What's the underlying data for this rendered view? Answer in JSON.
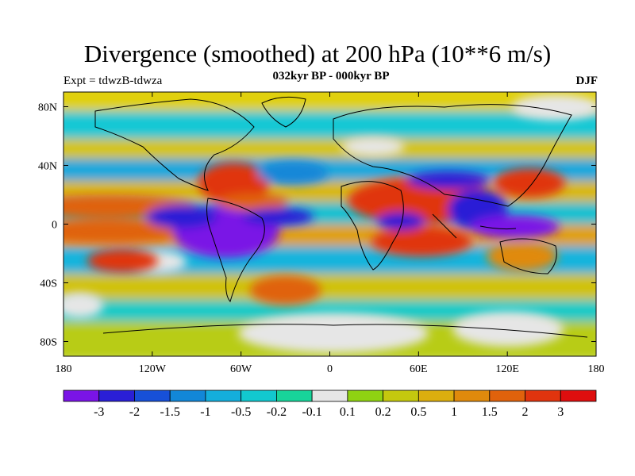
{
  "title": "Divergence (smoothed) at 200 hPa (10**6 m/s)",
  "subtitle": "032kyr BP - 000kyr BP",
  "left_label": "Expt = tdwzB-tdwza",
  "right_label": "DJF",
  "chart_data": {
    "type": "heatmap",
    "title": "Divergence (smoothed) at 200 hPa (10**6 m/s)",
    "subtitle": "032kyr BP - 000kyr BP",
    "xlim": [
      -180,
      180
    ],
    "ylim": [
      -90,
      90
    ],
    "x_ticks": [
      {
        "value": -180,
        "label": "180"
      },
      {
        "value": -120,
        "label": "120W"
      },
      {
        "value": -60,
        "label": "60W"
      },
      {
        "value": 0,
        "label": "0"
      },
      {
        "value": 60,
        "label": "60E"
      },
      {
        "value": 120,
        "label": "120E"
      },
      {
        "value": 180,
        "label": "180"
      }
    ],
    "y_ticks": [
      {
        "value": 80,
        "label": "80N"
      },
      {
        "value": 40,
        "label": "40N"
      },
      {
        "value": 0,
        "label": "0"
      },
      {
        "value": -40,
        "label": "40S"
      },
      {
        "value": -80,
        "label": "80S"
      }
    ],
    "colorbar": {
      "labels": [
        "-3",
        "-2",
        "-1.5",
        "-1",
        "-0.5",
        "-0.2",
        "-0.1",
        "0.1",
        "0.2",
        "0.5",
        "1",
        "1.5",
        "2",
        "3"
      ],
      "colors": [
        "#7a14e6",
        "#2a1fd6",
        "#1750d8",
        "#1287d8",
        "#14aedc",
        "#12c8cf",
        "#18d49a",
        "#e6e6e6",
        "#8fd212",
        "#c4c80e",
        "#dcae0e",
        "#e08a0c",
        "#e0620c",
        "#e0340e",
        "#de0e0e"
      ]
    },
    "regions": [
      {
        "lon": -150,
        "lat": 12,
        "rx": 30,
        "ry": 4,
        "level": 12
      },
      {
        "lon": -150,
        "lat": -5,
        "rx": 28,
        "ry": 4,
        "level": 12
      },
      {
        "lon": -140,
        "lat": -25,
        "rx": 12,
        "ry": 4,
        "level": 13
      },
      {
        "lon": -70,
        "lat": -5,
        "rx": 18,
        "ry": 9,
        "level": 0
      },
      {
        "lon": -62,
        "lat": -3,
        "rx": 8,
        "ry": 5,
        "level": 0
      },
      {
        "lon": -100,
        "lat": 5,
        "rx": 12,
        "ry": 4,
        "level": 1
      },
      {
        "lon": -65,
        "lat": 28,
        "rx": 12,
        "ry": 7,
        "level": 13
      },
      {
        "lon": -52,
        "lat": 15,
        "rx": 12,
        "ry": 3,
        "level": 12
      },
      {
        "lon": -35,
        "lat": 5,
        "rx": 12,
        "ry": 3,
        "level": 1
      },
      {
        "lon": 62,
        "lat": 16,
        "rx": 25,
        "ry": 8,
        "level": 13
      },
      {
        "lon": 62,
        "lat": -12,
        "rx": 17,
        "ry": 5,
        "level": 13
      },
      {
        "lon": 48,
        "lat": 2,
        "rx": 8,
        "ry": 3,
        "level": 1
      },
      {
        "lon": 100,
        "lat": 10,
        "rx": 10,
        "ry": 7,
        "level": 1
      },
      {
        "lon": 125,
        "lat": -2,
        "rx": 15,
        "ry": 4,
        "level": 0
      },
      {
        "lon": 135,
        "lat": 28,
        "rx": 12,
        "ry": 5,
        "level": 13
      },
      {
        "lon": 130,
        "lat": -22,
        "rx": 12,
        "ry": 5,
        "level": 11
      },
      {
        "lon": 80,
        "lat": 30,
        "rx": 14,
        "ry": 3,
        "level": 1
      },
      {
        "lon": -30,
        "lat": -45,
        "rx": 12,
        "ry": 5,
        "level": 12
      },
      {
        "lon": -25,
        "lat": 35,
        "rx": 12,
        "ry": 4,
        "level": 3
      }
    ]
  }
}
